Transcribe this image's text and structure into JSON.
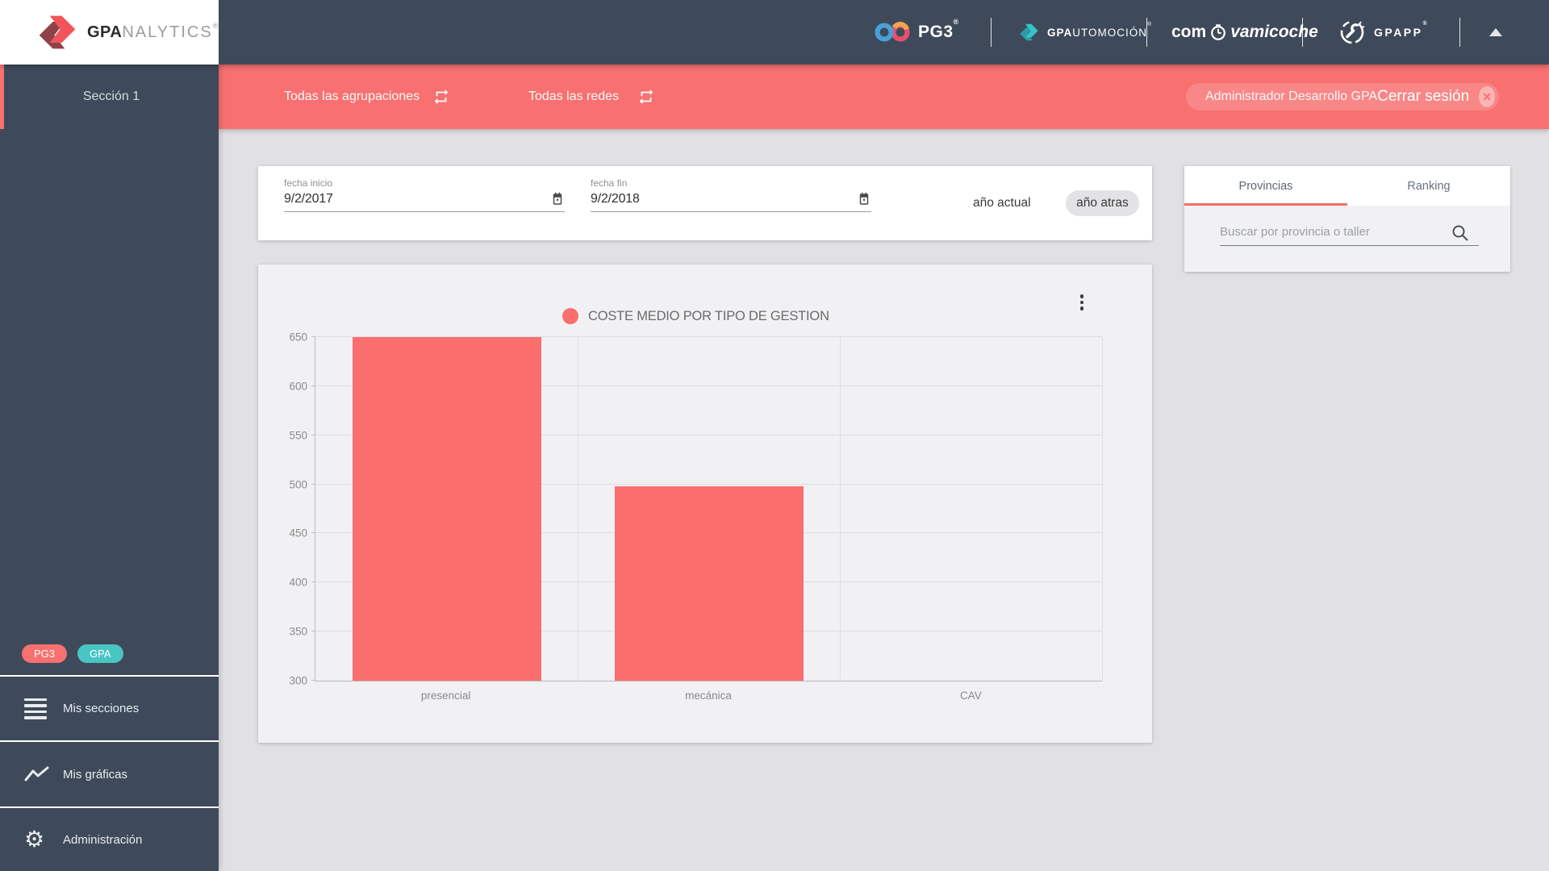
{
  "brand": {
    "bold": "GPA",
    "suffix": "NALYTICS",
    "reg": "®"
  },
  "header": {
    "pg3_logo": {
      "text": "PG3",
      "reg": "®"
    },
    "gpautomocion_logo": {
      "bold": "GPA",
      "rest": "UTOMOCIÓN",
      "reg": "®"
    },
    "comova_logo": {
      "pre": "com",
      "post": "vamicoche"
    },
    "gpapp_logo": {
      "text": "GPAPP",
      "reg": "®"
    }
  },
  "toolbar": {
    "agrupaciones_label": "Todas las agrupaciones",
    "redes_label": "Todas las redes",
    "user_label": "Administrador Desarrollo GPA",
    "logout_label": "Cerrar sesión",
    "logout_x": "✕"
  },
  "sidebar": {
    "section_label": "Sección 1",
    "badges": [
      {
        "label": "PG3",
        "color": "#f87070"
      },
      {
        "label": "GPA",
        "color": "#49c5c4"
      }
    ],
    "items": [
      {
        "label": "Mis secciones",
        "icon": "list-icon"
      },
      {
        "label": "Mis gráficas",
        "icon": "chart-line-icon"
      },
      {
        "label": "Administración",
        "icon": "gear-icon"
      }
    ],
    "gear_glyph": "⚙"
  },
  "filters": {
    "fecha_inicio": {
      "label": "fecha inicio",
      "value": "9/2/2017"
    },
    "fecha_fin": {
      "label": "fecha fin",
      "value": "9/2/2018"
    },
    "anio_actual_label": "año actual",
    "anio_atras_label": "año atras"
  },
  "chart_data": {
    "type": "bar",
    "title": "COSTE MEDIO POR TIPO DE GESTION",
    "categories": [
      "presencial",
      "mecánica",
      "CAV"
    ],
    "values": [
      650,
      498,
      null
    ],
    "ylim": [
      300,
      650
    ],
    "yticks": [
      300,
      350,
      400,
      450,
      500,
      550,
      600,
      650
    ],
    "bar_color": "#fa6e6e",
    "bar_width_pct": 24,
    "grid": true,
    "legend_position": "top-center",
    "note": "presencial bar is clipped at the 650 axis maximum; CAV shows no bar within the visible range"
  },
  "panel": {
    "tabs": [
      {
        "label": "Provincias",
        "active": true
      },
      {
        "label": "Ranking",
        "active": false
      }
    ],
    "search_placeholder": "Buscar por provincia o taller"
  },
  "colors": {
    "accent_coral": "#f87070",
    "header_dark": "#3e4a5a",
    "teal": "#49c5c4",
    "page_bg": "#e1e1e4",
    "card_bg": "#f1f1f4"
  }
}
